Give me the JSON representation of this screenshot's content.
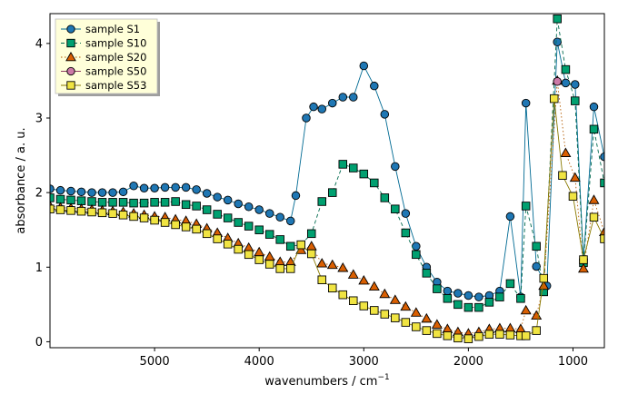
{
  "chart_data": {
    "type": "line",
    "xlabel_main": "wavenumbers / cm",
    "xlabel_sup": "−1",
    "ylabel": "absorbance / a. u.",
    "x_reversed": true,
    "xlim": [
      6000,
      700
    ],
    "ylim": [
      -0.08,
      4.4
    ],
    "xticks": [
      {
        "v": 5000,
        "label": "5000"
      },
      {
        "v": 4000,
        "label": "4000"
      },
      {
        "v": 3000,
        "label": "3000"
      },
      {
        "v": 2000,
        "label": "2000"
      },
      {
        "v": 1000,
        "label": "1000"
      }
    ],
    "yticks": [
      {
        "v": 0,
        "label": "0"
      },
      {
        "v": 1,
        "label": "1"
      },
      {
        "v": 2,
        "label": "2"
      },
      {
        "v": 3,
        "label": "3"
      },
      {
        "v": 4,
        "label": "4"
      }
    ],
    "legend_position": "top-left",
    "series": [
      {
        "name": "sample S1",
        "color": "#006a93",
        "marker": "circle",
        "fill": "#1f77b4",
        "dash": "",
        "points": [
          [
            6000,
            2.05
          ],
          [
            5900,
            2.03
          ],
          [
            5800,
            2.02
          ],
          [
            5700,
            2.01
          ],
          [
            5600,
            2.0
          ],
          [
            5500,
            2.0
          ],
          [
            5400,
            2.0
          ],
          [
            5300,
            2.01
          ],
          [
            5200,
            2.09
          ],
          [
            5100,
            2.06
          ],
          [
            5000,
            2.06
          ],
          [
            4900,
            2.07
          ],
          [
            4800,
            2.07
          ],
          [
            4700,
            2.07
          ],
          [
            4600,
            2.04
          ],
          [
            4500,
            1.99
          ],
          [
            4400,
            1.94
          ],
          [
            4300,
            1.9
          ],
          [
            4200,
            1.85
          ],
          [
            4100,
            1.81
          ],
          [
            4000,
            1.77
          ],
          [
            3900,
            1.72
          ],
          [
            3800,
            1.67
          ],
          [
            3700,
            1.62
          ],
          [
            3650,
            1.96
          ],
          [
            3550,
            3.0
          ],
          [
            3480,
            3.15
          ],
          [
            3400,
            3.12
          ],
          [
            3300,
            3.2
          ],
          [
            3200,
            3.28
          ],
          [
            3100,
            3.28
          ],
          [
            3000,
            3.7
          ],
          [
            2900,
            3.43
          ],
          [
            2800,
            3.05
          ],
          [
            2700,
            2.35
          ],
          [
            2600,
            1.72
          ],
          [
            2500,
            1.28
          ],
          [
            2400,
            1.0
          ],
          [
            2300,
            0.8
          ],
          [
            2200,
            0.68
          ],
          [
            2100,
            0.65
          ],
          [
            2000,
            0.62
          ],
          [
            1900,
            0.6
          ],
          [
            1800,
            0.62
          ],
          [
            1700,
            0.68
          ],
          [
            1600,
            1.68
          ],
          [
            1500,
            0.6
          ],
          [
            1450,
            3.2
          ],
          [
            1350,
            1.01
          ],
          [
            1250,
            0.75
          ],
          [
            1150,
            4.02
          ],
          [
            1070,
            3.47
          ],
          [
            980,
            3.45
          ],
          [
            900,
            1.1
          ],
          [
            800,
            3.15
          ],
          [
            700,
            2.48
          ]
        ]
      },
      {
        "name": "sample S10",
        "color": "#006a4e",
        "marker": "square",
        "fill": "#00a070",
        "dash": "4,3",
        "points": [
          [
            6000,
            1.93
          ],
          [
            5900,
            1.91
          ],
          [
            5800,
            1.9
          ],
          [
            5700,
            1.89
          ],
          [
            5600,
            1.88
          ],
          [
            5500,
            1.87
          ],
          [
            5400,
            1.87
          ],
          [
            5300,
            1.87
          ],
          [
            5200,
            1.86
          ],
          [
            5100,
            1.86
          ],
          [
            5000,
            1.87
          ],
          [
            4900,
            1.87
          ],
          [
            4800,
            1.88
          ],
          [
            4700,
            1.84
          ],
          [
            4600,
            1.82
          ],
          [
            4500,
            1.77
          ],
          [
            4400,
            1.71
          ],
          [
            4300,
            1.66
          ],
          [
            4200,
            1.6
          ],
          [
            4100,
            1.55
          ],
          [
            4000,
            1.5
          ],
          [
            3900,
            1.44
          ],
          [
            3800,
            1.37
          ],
          [
            3700,
            1.28
          ],
          [
            3600,
            1.3
          ],
          [
            3500,
            1.45
          ],
          [
            3400,
            1.88
          ],
          [
            3300,
            2.0
          ],
          [
            3200,
            2.38
          ],
          [
            3100,
            2.33
          ],
          [
            3000,
            2.25
          ],
          [
            2900,
            2.13
          ],
          [
            2800,
            1.93
          ],
          [
            2700,
            1.78
          ],
          [
            2600,
            1.46
          ],
          [
            2500,
            1.17
          ],
          [
            2400,
            0.92
          ],
          [
            2300,
            0.71
          ],
          [
            2200,
            0.58
          ],
          [
            2100,
            0.5
          ],
          [
            2000,
            0.46
          ],
          [
            1900,
            0.46
          ],
          [
            1800,
            0.53
          ],
          [
            1700,
            0.6
          ],
          [
            1600,
            0.78
          ],
          [
            1500,
            0.58
          ],
          [
            1450,
            1.82
          ],
          [
            1350,
            1.28
          ],
          [
            1280,
            0.67
          ],
          [
            1150,
            4.33
          ],
          [
            1070,
            3.65
          ],
          [
            980,
            3.23
          ],
          [
            900,
            1.06
          ],
          [
            800,
            2.85
          ],
          [
            700,
            2.13
          ]
        ]
      },
      {
        "name": "sample S20",
        "color": "#b35a00",
        "marker": "triangle",
        "fill": "#d95f02",
        "dash": "1.5,2.5",
        "points": [
          [
            6000,
            1.82
          ],
          [
            5900,
            1.8
          ],
          [
            5800,
            1.79
          ],
          [
            5700,
            1.78
          ],
          [
            5600,
            1.77
          ],
          [
            5500,
            1.76
          ],
          [
            5400,
            1.75
          ],
          [
            5300,
            1.74
          ],
          [
            5200,
            1.72
          ],
          [
            5100,
            1.7
          ],
          [
            5000,
            1.68
          ],
          [
            4900,
            1.67
          ],
          [
            4800,
            1.64
          ],
          [
            4700,
            1.62
          ],
          [
            4600,
            1.58
          ],
          [
            4500,
            1.52
          ],
          [
            4400,
            1.46
          ],
          [
            4300,
            1.39
          ],
          [
            4200,
            1.32
          ],
          [
            4100,
            1.26
          ],
          [
            4000,
            1.2
          ],
          [
            3900,
            1.14
          ],
          [
            3800,
            1.07
          ],
          [
            3700,
            1.07
          ],
          [
            3600,
            1.23
          ],
          [
            3500,
            1.28
          ],
          [
            3400,
            1.05
          ],
          [
            3300,
            1.03
          ],
          [
            3200,
            0.99
          ],
          [
            3100,
            0.9
          ],
          [
            3000,
            0.82
          ],
          [
            2900,
            0.74
          ],
          [
            2800,
            0.64
          ],
          [
            2700,
            0.56
          ],
          [
            2600,
            0.47
          ],
          [
            2500,
            0.39
          ],
          [
            2400,
            0.31
          ],
          [
            2300,
            0.23
          ],
          [
            2200,
            0.17
          ],
          [
            2100,
            0.13
          ],
          [
            2000,
            0.11
          ],
          [
            1900,
            0.13
          ],
          [
            1800,
            0.17
          ],
          [
            1700,
            0.18
          ],
          [
            1600,
            0.18
          ],
          [
            1500,
            0.17
          ],
          [
            1450,
            0.42
          ],
          [
            1350,
            0.35
          ],
          [
            1280,
            0.75
          ],
          [
            1150,
            3.5
          ],
          [
            1070,
            2.53
          ],
          [
            980,
            2.2
          ],
          [
            900,
            0.98
          ],
          [
            800,
            1.9
          ],
          [
            700,
            1.47
          ]
        ]
      },
      {
        "name": "sample S50",
        "color": "#8b3a62",
        "marker": "circle",
        "fill": "#cc79a7",
        "dash": "",
        "points": [
          [
            1150,
            3.49
          ]
        ]
      },
      {
        "name": "sample S53",
        "color": "#8a7a00",
        "marker": "square",
        "fill": "#f0e442",
        "dash": "",
        "points": [
          [
            6000,
            1.78
          ],
          [
            5900,
            1.77
          ],
          [
            5800,
            1.76
          ],
          [
            5700,
            1.75
          ],
          [
            5600,
            1.74
          ],
          [
            5500,
            1.73
          ],
          [
            5400,
            1.72
          ],
          [
            5300,
            1.7
          ],
          [
            5200,
            1.68
          ],
          [
            5100,
            1.66
          ],
          [
            5000,
            1.63
          ],
          [
            4900,
            1.6
          ],
          [
            4800,
            1.57
          ],
          [
            4700,
            1.54
          ],
          [
            4600,
            1.51
          ],
          [
            4500,
            1.45
          ],
          [
            4400,
            1.38
          ],
          [
            4300,
            1.31
          ],
          [
            4200,
            1.24
          ],
          [
            4100,
            1.17
          ],
          [
            4000,
            1.1
          ],
          [
            3900,
            1.04
          ],
          [
            3800,
            0.98
          ],
          [
            3700,
            0.98
          ],
          [
            3600,
            1.3
          ],
          [
            3500,
            1.18
          ],
          [
            3400,
            0.83
          ],
          [
            3300,
            0.72
          ],
          [
            3200,
            0.63
          ],
          [
            3100,
            0.55
          ],
          [
            3000,
            0.48
          ],
          [
            2900,
            0.42
          ],
          [
            2800,
            0.37
          ],
          [
            2700,
            0.32
          ],
          [
            2600,
            0.26
          ],
          [
            2500,
            0.2
          ],
          [
            2400,
            0.15
          ],
          [
            2300,
            0.11
          ],
          [
            2200,
            0.08
          ],
          [
            2100,
            0.05
          ],
          [
            2000,
            0.04
          ],
          [
            1900,
            0.07
          ],
          [
            1800,
            0.1
          ],
          [
            1700,
            0.1
          ],
          [
            1600,
            0.09
          ],
          [
            1500,
            0.08
          ],
          [
            1450,
            0.08
          ],
          [
            1350,
            0.15
          ],
          [
            1280,
            0.85
          ],
          [
            1180,
            3.26
          ],
          [
            1100,
            2.23
          ],
          [
            1000,
            1.95
          ],
          [
            900,
            1.1
          ],
          [
            800,
            1.67
          ],
          [
            700,
            1.38
          ]
        ]
      }
    ]
  }
}
